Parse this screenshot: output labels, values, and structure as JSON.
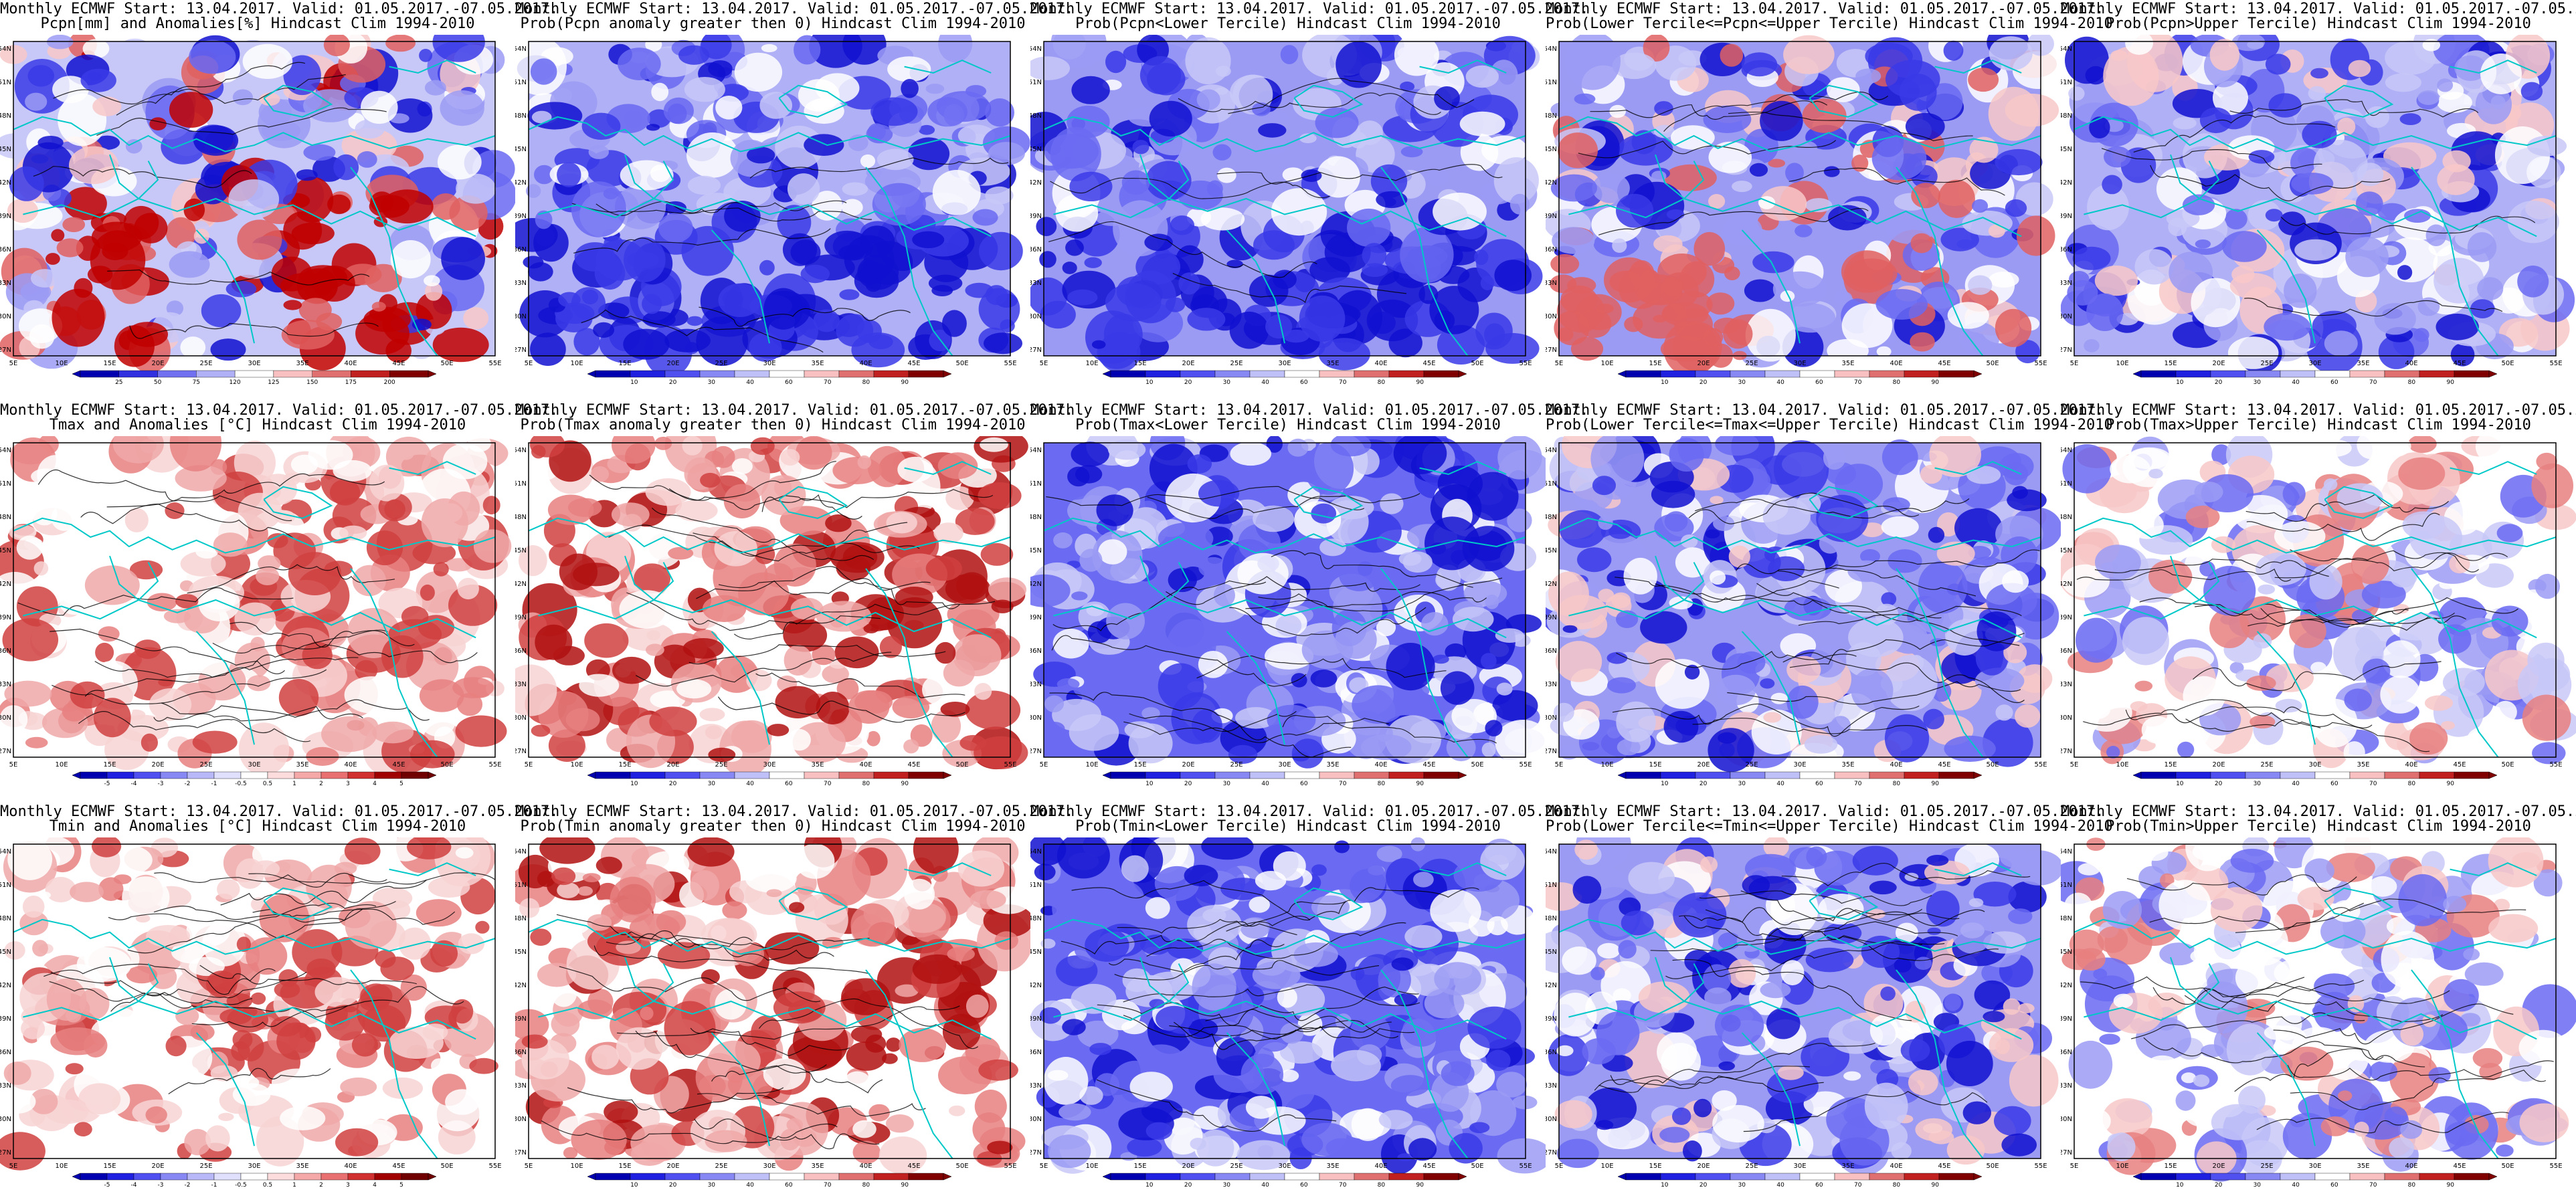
{
  "header_line1": "Monthly ECMWF Start: 13.04.2017. Valid: 01.05.2017.-07.05.2017.",
  "lon_labels": [
    "5E",
    "10E",
    "15E",
    "20E",
    "25E",
    "30E",
    "35E",
    "40E",
    "45E",
    "50E",
    "55E"
  ],
  "lat_labels": [
    "54N",
    "51N",
    "48N",
    "45N",
    "42N",
    "39N",
    "36N",
    "33N",
    "30N",
    "27N"
  ],
  "prob_scale": [
    "10",
    "20",
    "30",
    "40",
    "60",
    "70",
    "80",
    "90"
  ],
  "colors": {
    "land_contour": "#00c8c8",
    "contour": "#000000",
    "deep_blue": "#1010d0",
    "deep_red": "#c00000",
    "white": "#ffffff"
  },
  "rows": [
    {
      "variable": "Pcpn",
      "panels": [
        {
          "title": "Pcpn[mm] and Anomalies[%] Hindcast Clim 1994-2010",
          "scale": [
            "25",
            "50",
            "75",
            "120",
            "125",
            "150",
            "175",
            "200"
          ],
          "style": "pcpn_anom"
        },
        {
          "title": "Prob(Pcpn anomaly greater then 0) Hindcast Clim 1994-2010",
          "style": "pcpn_gt0"
        },
        {
          "title": "Prob(Pcpn<Lower Tercile) Hindcast Clim 1994-2010",
          "style": "pcpn_lower"
        },
        {
          "title": "Prob(Lower Tercile<=Pcpn<=Upper Tercile) Hindcast Clim 1994-2010",
          "style": "pcpn_mid"
        },
        {
          "title": "Prob(Pcpn>Upper Tercile) Hindcast Clim 1994-2010",
          "style": "pcpn_upper"
        }
      ]
    },
    {
      "variable": "Tmax",
      "panels": [
        {
          "title": "Tmax and Anomalies [°C] Hindcast Clim 1994-2010",
          "scale": [
            "-5",
            "-4",
            "-3",
            "-2",
            "-1",
            "-0.5",
            "0.5",
            "1",
            "2",
            "3",
            "4",
            "5"
          ],
          "style": "t_anom"
        },
        {
          "title": "Prob(Tmax anomaly greater then 0) Hindcast Clim 1994-2010",
          "style": "t_gt0"
        },
        {
          "title": "Prob(Tmax<Lower Tercile) Hindcast Clim 1994-2010",
          "style": "t_lower"
        },
        {
          "title": "Prob(Lower Tercile<=Tmax<=Upper Tercile) Hindcast Clim 1994-2010",
          "style": "t_mid"
        },
        {
          "title": "Prob(Tmax>Upper Tercile) Hindcast Clim 1994-2010",
          "style": "t_upper"
        }
      ]
    },
    {
      "variable": "Tmin",
      "panels": [
        {
          "title": "Tmin and Anomalies [°C] Hindcast Clim 1994-2010",
          "scale": [
            "-5",
            "-4",
            "-3",
            "-2",
            "-1",
            "-0.5",
            "0.5",
            "1",
            "2",
            "3",
            "4",
            "5"
          ],
          "style": "t_anom"
        },
        {
          "title": "Prob(Tmin anomaly greater then 0) Hindcast Clim 1994-2010",
          "style": "t_gt0"
        },
        {
          "title": "Prob(Tmin<Lower Tercile) Hindcast Clim 1994-2010",
          "style": "t_lower"
        },
        {
          "title": "Prob(Lower Tercile<=Tmin<=Upper Tercile) Hindcast Clim 1994-2010",
          "style": "t_mid"
        },
        {
          "title": "Prob(Tmin>Upper Tercile) Hindcast Clim 1994-2010",
          "style": "t_upper"
        }
      ]
    }
  ]
}
